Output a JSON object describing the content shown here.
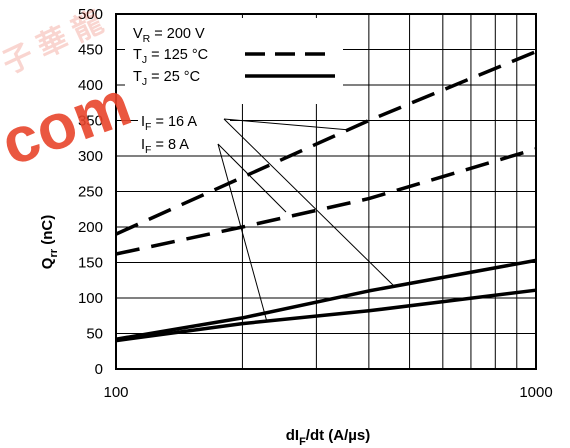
{
  "watermark": {
    "cjk": "子 華 龍",
    "text": "com",
    "color": "#e8452c"
  },
  "chart_data": {
    "type": "line",
    "x_scale": "log",
    "xlim": [
      100,
      1000
    ],
    "ylim": [
      0,
      500
    ],
    "grid": true,
    "xlabel": {
      "main": "dI",
      "sub": "F",
      "rest": "/dt (A/µs)"
    },
    "ylabel": {
      "main": "Q",
      "sub": "rr",
      "rest": " (nC)"
    },
    "x_ticks": [
      "100",
      "1000"
    ],
    "y_ticks": [
      "0",
      "50",
      "100",
      "150",
      "200",
      "250",
      "300",
      "350",
      "400",
      "450",
      "500"
    ],
    "legend": {
      "condition": {
        "main": "V",
        "sub": "R",
        "rest": " = 200 V"
      },
      "items": [
        {
          "main": "T",
          "sub": "J",
          "rest": " = 125 °C",
          "dash": true
        },
        {
          "main": "T",
          "sub": "J",
          "rest": " = 25 °C",
          "dash": false
        }
      ]
    },
    "annotations": [
      {
        "main": "I",
        "sub": "F",
        "rest": " = 16 A"
      },
      {
        "main": "I",
        "sub": "F",
        "rest": " = 8 A"
      }
    ],
    "series": [
      {
        "temp": "125 °C",
        "current": "16 A",
        "dash": true,
        "x": [
          100,
          200,
          400,
          1000
        ],
        "y": [
          190,
          270,
          350,
          447
        ]
      },
      {
        "temp": "125 °C",
        "current": "8 A",
        "dash": true,
        "x": [
          100,
          200,
          400,
          1000
        ],
        "y": [
          162,
          200,
          240,
          310
        ]
      },
      {
        "temp": "25 °C",
        "current": "16 A",
        "dash": false,
        "x": [
          100,
          200,
          400,
          1000
        ],
        "y": [
          42,
          72,
          110,
          153
        ]
      },
      {
        "temp": "25 °C",
        "current": "8 A",
        "dash": false,
        "x": [
          100,
          200,
          400,
          1000
        ],
        "y": [
          40,
          64,
          82,
          111
        ]
      }
    ]
  }
}
